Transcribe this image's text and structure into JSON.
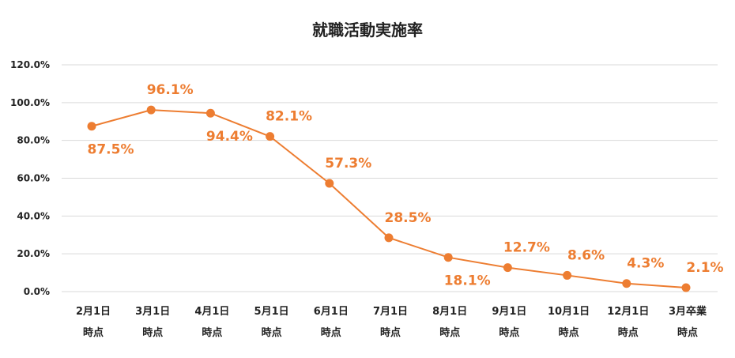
{
  "chart_data": {
    "type": "line",
    "title": "就職活動実施率",
    "categories": [
      [
        "2月1日",
        "時点"
      ],
      [
        "3月1日",
        "時点"
      ],
      [
        "4月1日",
        "時点"
      ],
      [
        "5月1日",
        "時点"
      ],
      [
        "6月1日",
        "時点"
      ],
      [
        "7月1日",
        "時点"
      ],
      [
        "8月1日",
        "時点"
      ],
      [
        "9月1日",
        "時点"
      ],
      [
        "10月1日",
        "時点"
      ],
      [
        "12月1日",
        "時点"
      ],
      [
        "3月卒業",
        "時点"
      ]
    ],
    "values": [
      87.5,
      96.1,
      94.4,
      82.1,
      57.3,
      28.5,
      18.1,
      12.7,
      8.6,
      4.3,
      2.1
    ],
    "data_labels": [
      "87.5%",
      "96.1%",
      "94.4%",
      "82.1%",
      "57.3%",
      "28.5%",
      "18.1%",
      "12.7%",
      "8.6%",
      "4.3%",
      "2.1%"
    ],
    "data_label_positions": [
      "below",
      "above",
      "below",
      "above",
      "above",
      "above",
      "below",
      "above",
      "above",
      "above",
      "above"
    ],
    "yticks": [
      "0.0%",
      "20.0%",
      "40.0%",
      "60.0%",
      "80.0%",
      "100.0%",
      "120.0%"
    ],
    "ylim": [
      0,
      120
    ],
    "grid": true,
    "legend": "none",
    "xlabel": "",
    "ylabel": "",
    "colors": {
      "series": "#ED7D31",
      "grid": "#D9D9D9"
    }
  }
}
